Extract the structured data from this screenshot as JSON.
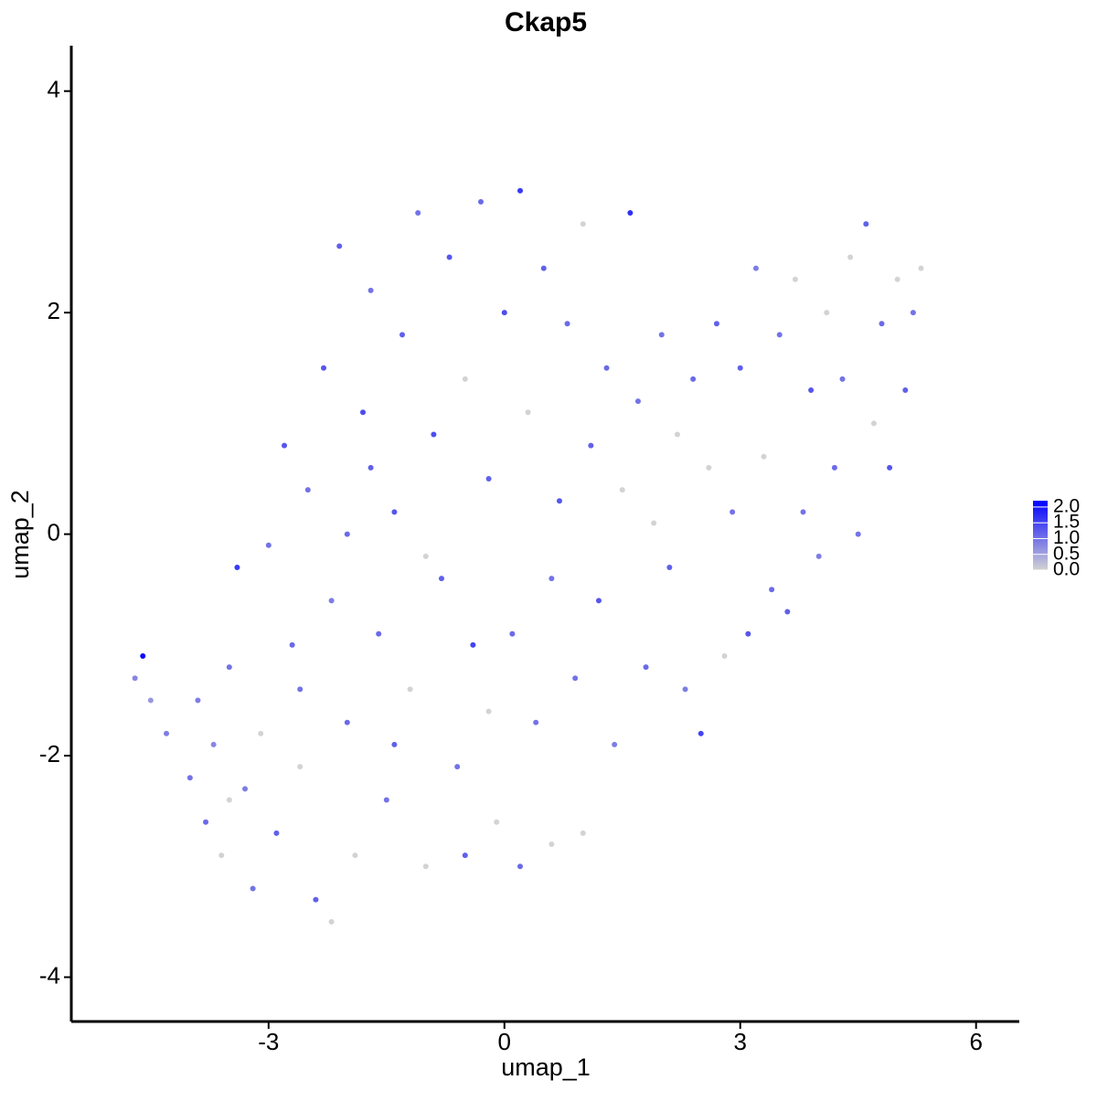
{
  "chart_data": {
    "type": "scatter",
    "title": "Ckap5",
    "xlabel": "umap_1",
    "ylabel": "umap_2",
    "x": [
      -4.6,
      -4.7,
      -4.5,
      -4.3,
      -4.0,
      -3.9,
      -3.8,
      -3.6,
      -3.5,
      -3.4,
      -3.3,
      -3.2,
      -3.1,
      -3.0,
      -2.9,
      -2.8,
      -2.7,
      -2.6,
      -2.5,
      -2.4,
      -2.3,
      -2.2,
      -2.1,
      -2.0,
      -1.9,
      -1.8,
      -1.7,
      -1.6,
      -1.5,
      -1.4,
      -1.3,
      -1.2,
      -1.1,
      -1.0,
      -0.9,
      -0.8,
      -0.7,
      -0.6,
      -0.5,
      -0.4,
      -0.3,
      -0.2,
      -0.1,
      0.0,
      0.1,
      0.2,
      0.3,
      0.4,
      0.5,
      0.6,
      0.7,
      0.8,
      0.9,
      1.0,
      1.1,
      1.2,
      1.3,
      1.4,
      1.6,
      1.5,
      1.7,
      1.8,
      1.9,
      2.0,
      2.1,
      2.2,
      2.3,
      2.4,
      2.5,
      2.6,
      2.7,
      2.8,
      2.9,
      3.0,
      3.1,
      3.2,
      3.3,
      3.4,
      3.5,
      3.6,
      3.7,
      3.8,
      3.9,
      4.0,
      4.1,
      4.2,
      4.3,
      4.4,
      4.5,
      4.6,
      4.7,
      4.8,
      4.9,
      5.0,
      5.1,
      5.2,
      5.3,
      -3.7,
      -2.2,
      -2.0,
      -1.0,
      0.2,
      -0.5,
      1.0,
      -2.6,
      -3.5,
      -1.4,
      -0.2,
      0.6,
      -1.7
    ],
    "y": [
      -1.1,
      -1.3,
      -1.5,
      -1.8,
      -2.2,
      -1.5,
      -2.6,
      -2.9,
      -1.2,
      -0.3,
      -2.3,
      -3.2,
      -1.8,
      -0.1,
      -2.7,
      0.8,
      -1.0,
      -2.1,
      0.4,
      -3.3,
      1.5,
      -0.6,
      2.6,
      -1.7,
      -2.9,
      1.1,
      2.2,
      -0.9,
      -2.4,
      0.2,
      1.8,
      -1.4,
      2.9,
      -3.0,
      0.9,
      -0.4,
      2.5,
      -2.1,
      1.4,
      -1.0,
      3.0,
      0.5,
      -2.6,
      2.0,
      -0.9,
      3.1,
      1.1,
      -1.7,
      2.4,
      -2.8,
      0.3,
      1.9,
      -1.3,
      2.8,
      0.8,
      -0.6,
      1.5,
      -1.9,
      2.9,
      0.4,
      1.2,
      -1.2,
      0.1,
      1.8,
      -0.3,
      0.9,
      -1.4,
      1.4,
      -1.8,
      0.6,
      1.9,
      -1.1,
      0.2,
      1.5,
      -0.9,
      2.4,
      0.7,
      -0.5,
      1.8,
      -0.7,
      2.3,
      0.2,
      1.3,
      -0.2,
      2.0,
      0.6,
      1.4,
      2.5,
      0.0,
      2.8,
      1.0,
      1.9,
      0.6,
      2.3,
      1.3,
      2.0,
      2.4,
      -1.9,
      -3.5,
      0.0,
      -0.2,
      -3.0,
      -2.9,
      -2.7,
      -1.4,
      -2.4,
      -1.9,
      -1.6,
      -0.4,
      0.6
    ],
    "values": [
      2.1,
      0.8,
      0.6,
      0.9,
      1.0,
      0.9,
      1.1,
      0,
      1.0,
      1.6,
      0.9,
      1.0,
      0,
      1.0,
      1.2,
      1.3,
      1.1,
      0,
      1.0,
      1.2,
      1.3,
      0.9,
      1.2,
      1.1,
      0,
      1.4,
      1.0,
      1.1,
      1.0,
      1.3,
      1.2,
      0,
      1.0,
      0,
      1.4,
      1.2,
      1.3,
      1.0,
      0,
      1.5,
      1.1,
      1.2,
      0,
      1.4,
      1.1,
      1.6,
      0,
      1.0,
      1.2,
      0,
      1.3,
      1.1,
      1.0,
      0,
      1.2,
      1.3,
      1.1,
      0.9,
      1.7,
      0,
      1.0,
      1.1,
      0,
      1.0,
      1.2,
      0,
      0.9,
      1.1,
      1.5,
      0,
      1.2,
      0,
      1.0,
      1.2,
      1.3,
      0.9,
      0,
      1.1,
      1.0,
      1.2,
      0,
      1.0,
      1.3,
      0.9,
      0,
      1.1,
      1.0,
      0,
      1.0,
      1.2,
      0,
      1.1,
      1.3,
      0,
      1.2,
      1.0,
      0,
      0.8,
      0,
      1.1,
      0,
      1.1,
      1.2,
      0,
      1.0,
      0,
      1.2,
      0,
      1.0,
      1.2
    ],
    "low_color": "#d3d3d3",
    "high_color": "#0000ff",
    "xlim": [
      -5.51,
      6.55
    ],
    "xticks": [
      -3,
      0,
      3,
      6
    ],
    "ylim": [
      -4.4,
      4.41
    ],
    "yticks": [
      -4,
      -2,
      0,
      2,
      4
    ],
    "colorlim": [
      0,
      2.2
    ],
    "colorticks": [
      {
        "value": 0,
        "label": "0.0"
      },
      0.5,
      {
        "value": 1,
        "label": "1.0"
      },
      1.5,
      {
        "value": 2,
        "label": "2.0"
      }
    ],
    "legend": "right"
  }
}
